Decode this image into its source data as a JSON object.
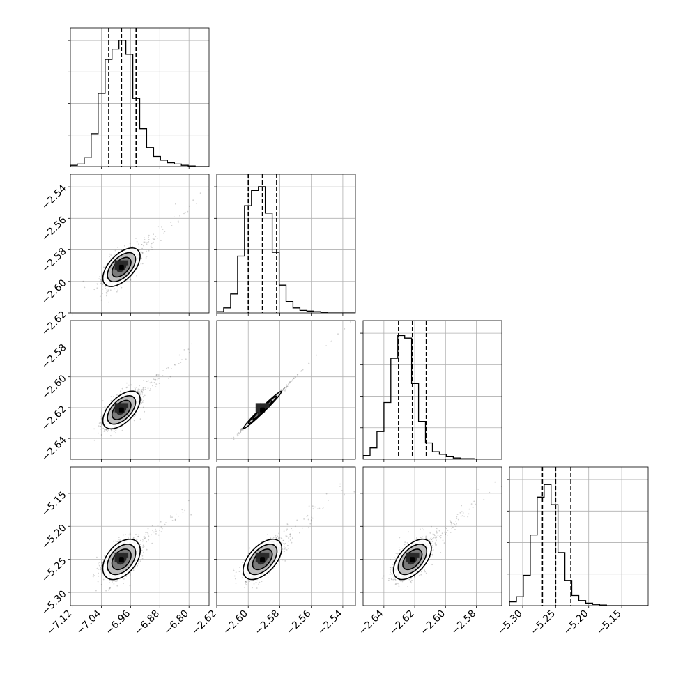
{
  "chart_data": {
    "type": "corner",
    "grid": true,
    "variables": [
      {
        "ticks": [
          -7.12,
          -7.04,
          -6.96,
          -6.88,
          -6.8
        ],
        "tick_labels": [
          "−7.12",
          "−7.04",
          "−6.96",
          "−6.88",
          "−6.80"
        ],
        "range": [
          -7.125,
          -6.745
        ],
        "quantiles": [
          -7.02,
          -6.985,
          -6.945
        ]
      },
      {
        "ticks": [
          -2.62,
          -2.6,
          -2.58,
          -2.56,
          -2.54
        ],
        "tick_labels": [
          "−2.62",
          "−2.60",
          "−2.58",
          "−2.56",
          "−2.54"
        ],
        "range": [
          -2.62,
          -2.532
        ],
        "quantiles": [
          -2.6,
          -2.591,
          -2.582
        ]
      },
      {
        "ticks": [
          -2.64,
          -2.62,
          -2.6,
          -2.58
        ],
        "tick_labels": [
          "−2.64",
          "−2.62",
          "−2.60",
          "−2.58"
        ],
        "range": [
          -2.6535,
          -2.5635
        ],
        "quantiles": [
          -2.6305,
          -2.6215,
          -2.6125
        ]
      },
      {
        "ticks": [
          -5.3,
          -5.25,
          -5.2,
          -5.15
        ],
        "tick_labels": [
          "−5.30",
          "−5.25",
          "−5.20",
          "−5.15"
        ],
        "range": [
          -5.32,
          -5.11
        ],
        "quantiles": [
          -5.27,
          -5.25,
          -5.227
        ]
      }
    ],
    "histograms": [
      [
        0.01,
        0.02,
        0.07,
        0.26,
        0.58,
        0.85,
        0.93,
        1.0,
        0.89,
        0.54,
        0.3,
        0.15,
        0.08,
        0.05,
        0.03,
        0.02,
        0.01,
        0.005,
        0.0,
        0.0
      ],
      [
        0.01,
        0.04,
        0.15,
        0.45,
        0.85,
        0.97,
        1.0,
        0.79,
        0.48,
        0.22,
        0.09,
        0.04,
        0.02,
        0.015,
        0.01,
        0.005,
        0.0,
        0.0,
        0.0,
        0.0
      ],
      [
        0.03,
        0.09,
        0.22,
        0.45,
        0.8,
        0.98,
        0.96,
        0.6,
        0.3,
        0.13,
        0.06,
        0.04,
        0.02,
        0.01,
        0.005,
        0.005,
        0.0,
        0.0,
        0.0,
        0.0
      ],
      [
        0.03,
        0.07,
        0.24,
        0.56,
        0.86,
        0.96,
        0.8,
        0.42,
        0.2,
        0.08,
        0.04,
        0.02,
        0.01,
        0.005,
        0.0,
        0.0,
        0.0,
        0.0,
        0.0,
        0.0
      ]
    ],
    "correlations": [
      [
        1,
        0.62,
        0.62,
        0.5
      ],
      [
        0.62,
        1,
        0.995,
        0.6
      ],
      [
        0.62,
        0.995,
        1,
        0.6
      ],
      [
        0.5,
        0.6,
        0.6,
        1
      ]
    ],
    "centers": [
      -6.985,
      -2.591,
      -2.6215,
      -5.25
    ],
    "sigmas": [
      0.025,
      0.006,
      0.006,
      0.015
    ],
    "contour_levels_sigma": [
      0.5,
      1.0,
      1.5,
      2.0
    ],
    "contour_fill": [
      "#2a2a2a",
      "#7a7a7a",
      "#bdbdbd",
      "#ffffff"
    ]
  }
}
